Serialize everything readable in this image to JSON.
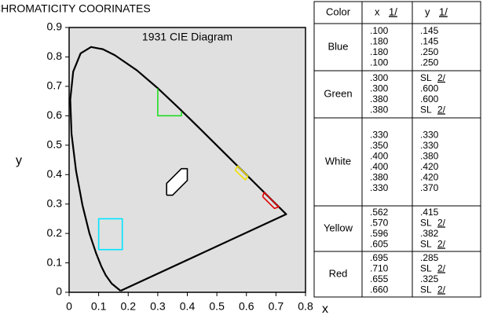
{
  "chart_data": {
    "type": "line",
    "title": "CHROMATICITY COORINATES",
    "annotation": "1931 CIE Diagram",
    "x_label": "x",
    "y_label": "y",
    "xlim": [
      0,
      0.8
    ],
    "ylim": [
      0,
      0.9
    ],
    "xticks": [
      0,
      0.1,
      0.2,
      0.3,
      0.4,
      0.5,
      0.6,
      0.7,
      0.8
    ],
    "yticks": [
      0,
      0.1,
      0.2,
      0.3,
      0.4,
      0.5,
      0.6,
      0.7,
      0.8,
      0.9
    ],
    "background": "#e0e0e0",
    "series": [
      {
        "color": "#000000",
        "x": [
          0.1741,
          0.144,
          0.1241,
          0.1096,
          0.0913,
          0.0687,
          0.0454,
          0.0235,
          0.0082,
          0.0039,
          0.0139,
          0.0389,
          0.0743,
          0.1142,
          0.1547,
          0.2296,
          0.3016,
          0.3731,
          0.4441,
          0.5125,
          0.5752,
          0.627,
          0.6915,
          0.719,
          0.7347,
          0.1741
        ],
        "values": [
          0.005,
          0.0297,
          0.0578,
          0.0868,
          0.1327,
          0.2007,
          0.295,
          0.4127,
          0.5384,
          0.6548,
          0.7502,
          0.812,
          0.8338,
          0.8262,
          0.8059,
          0.7543,
          0.6923,
          0.6245,
          0.5547,
          0.4866,
          0.4242,
          0.3725,
          0.3083,
          0.2809,
          0.2653,
          0.005
        ]
      },
      {
        "color": "#00e5ff",
        "x": [
          0.1,
          0.18,
          0.18,
          0.1,
          0.1
        ],
        "values": [
          0.145,
          0.145,
          0.25,
          0.25,
          0.145
        ]
      },
      {
        "color": "#22dd22",
        "x": [
          0.3,
          0.3,
          0.38,
          0.38
        ],
        "values": [
          0.693,
          0.6,
          0.6,
          0.615
        ]
      },
      {
        "color": "#000000",
        "fill": "#ffffff",
        "x": [
          0.33,
          0.35,
          0.4,
          0.4,
          0.38,
          0.33,
          0.33
        ],
        "values": [
          0.33,
          0.33,
          0.38,
          0.42,
          0.42,
          0.37,
          0.33
        ]
      },
      {
        "color": "#f0e000",
        "x": [
          0.562,
          0.57,
          0.605,
          0.596,
          0.562
        ],
        "values": [
          0.415,
          0.429,
          0.394,
          0.382,
          0.415
        ]
      },
      {
        "color": "#e00000",
        "x": [
          0.655,
          0.66,
          0.71,
          0.695,
          0.655
        ],
        "values": [
          0.325,
          0.34,
          0.29,
          0.285,
          0.325
        ]
      }
    ]
  },
  "table": {
    "header": [
      {
        "text": "Color"
      },
      {
        "text": "x",
        "note": "1/"
      },
      {
        "text": "y",
        "note": "1/"
      }
    ],
    "groups": [
      {
        "name": "Blue",
        "x": [
          ".100",
          ".180",
          ".180",
          ".100"
        ],
        "y": [
          ".145",
          ".145",
          ".250",
          ".250"
        ]
      },
      {
        "name": "Green",
        "x": [
          ".300",
          ".300",
          ".380",
          ".380"
        ],
        "y": [
          {
            "text": "SL",
            "note": "2/"
          },
          ".600",
          ".600",
          {
            "text": "SL",
            "note": "2/"
          }
        ]
      },
      {
        "name": "White",
        "x": [
          ".330",
          ".350",
          ".400",
          ".400",
          ".380",
          ".330"
        ],
        "y": [
          ".330",
          ".330",
          ".380",
          ".420",
          ".420",
          ".370"
        ]
      },
      {
        "name": "Yellow",
        "x": [
          ".562",
          ".570",
          ".596",
          ".605"
        ],
        "y": [
          ".415",
          {
            "text": "SL",
            "note": "2/"
          },
          ".382",
          {
            "text": "SL",
            "note": "2/"
          }
        ]
      },
      {
        "name": "Red",
        "x": [
          ".695",
          ".710",
          ".655",
          ".660"
        ],
        "y": [
          ".285",
          {
            "text": "SL",
            "note": "2/"
          },
          ".325",
          {
            "text": "SL",
            "note": "2/"
          }
        ]
      }
    ]
  }
}
